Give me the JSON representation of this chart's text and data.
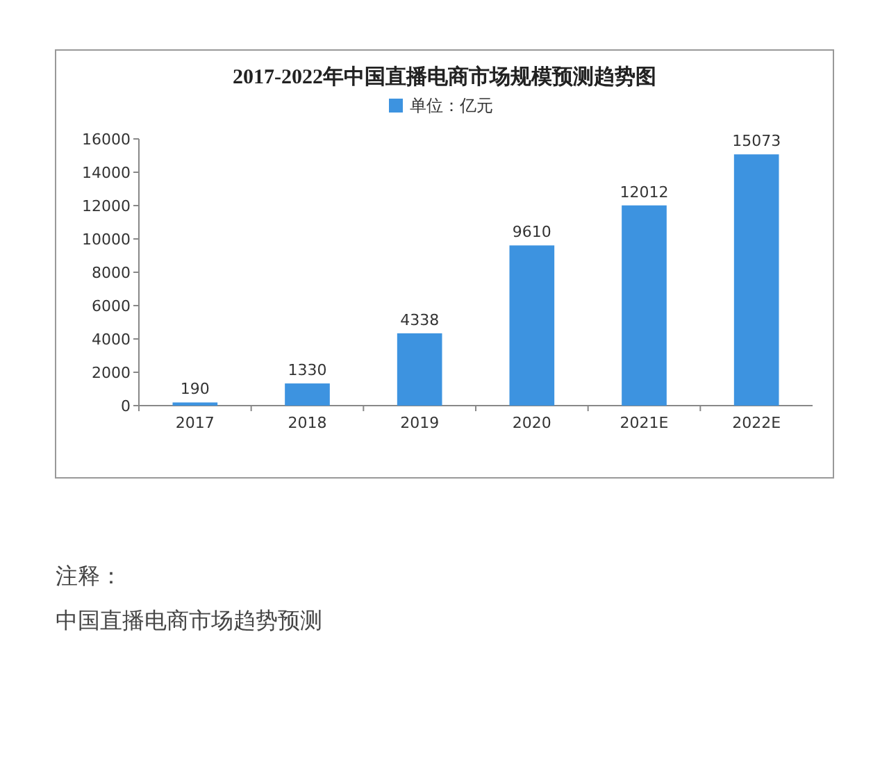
{
  "chart_data": {
    "type": "bar",
    "title": "2017-2022年中国直播电商市场规模预测趋势图",
    "categories": [
      "2017",
      "2018",
      "2019",
      "2020",
      "2021E",
      "2022E"
    ],
    "series": [
      {
        "name": "单位：亿元",
        "color": "#3d93e0",
        "values": [
          190,
          1330,
          4338,
          9610,
          12012,
          15073
        ]
      }
    ],
    "ylim": [
      0,
      16000
    ],
    "yticks": [
      0,
      2000,
      4000,
      6000,
      8000,
      10000,
      12000,
      14000,
      16000
    ],
    "data_labels": true,
    "legend": "top",
    "annotations": [
      "注释：",
      "中国直播电商市场趋势预测"
    ]
  }
}
